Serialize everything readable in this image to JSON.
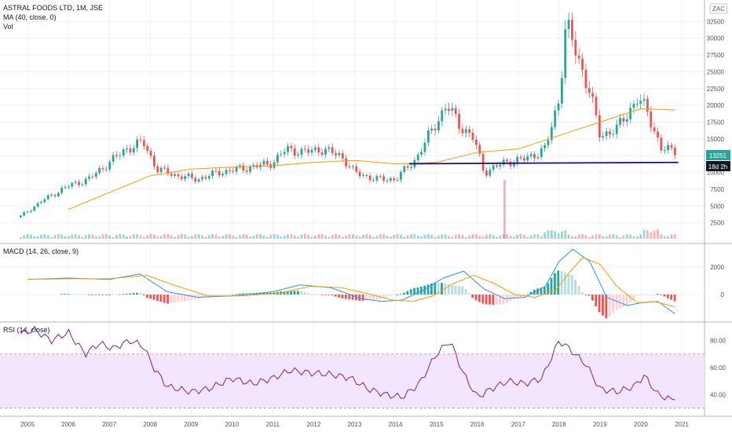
{
  "header": {
    "title": "ASTRAL FOODS LTD, 1M, JSE",
    "ma_label": "MA (40, close, 0)",
    "vol_label": "Vol",
    "currency": "ZAC"
  },
  "price_panel": {
    "last_price": "13251",
    "countdown": "18d 2h",
    "colors": {
      "up": "#26a69a",
      "down": "#ef5350",
      "ma": "#ff9800",
      "support": "#0c0ca8"
    }
  },
  "macd_panel": {
    "label": "MACD (14, 26, close, 9)"
  },
  "rsi_panel": {
    "label": "RSI (14, close)"
  },
  "chart_data": [
    {
      "type": "line",
      "title": "ASTRAL FOODS LTD, 1M, JSE",
      "x_ticks": [
        "2005",
        "2006",
        "2007",
        "2008",
        "2009",
        "2010",
        "2011",
        "2012",
        "2013",
        "2014",
        "2015",
        "2016",
        "2017",
        "2018",
        "2019",
        "2020",
        "2021"
      ],
      "y_ticks": [
        2500,
        5000,
        7500,
        10000,
        12500,
        15000,
        17500,
        20000,
        22500,
        25000,
        27500,
        30000,
        32500
      ],
      "ylim": [
        0,
        35000
      ],
      "series": [
        {
          "name": "Close",
          "x": [
            "2004-11",
            "2005-06",
            "2006-01",
            "2006-07",
            "2007-01",
            "2007-06",
            "2007-11",
            "2008-03",
            "2008-09",
            "2009-03",
            "2009-09",
            "2010-03",
            "2010-09",
            "2011-01",
            "2011-05",
            "2011-10",
            "2012-03",
            "2012-09",
            "2013-01",
            "2013-07",
            "2014-01",
            "2014-07",
            "2015-01",
            "2015-04",
            "2015-08",
            "2015-12",
            "2016-03",
            "2016-09",
            "2017-03",
            "2017-09",
            "2018-01",
            "2018-03",
            "2018-06",
            "2018-10",
            "2019-01",
            "2019-06",
            "2019-12",
            "2020-03",
            "2020-07",
            "2020-11"
          ],
          "values": [
            3500,
            6000,
            8000,
            9000,
            11500,
            13500,
            14500,
            10500,
            9500,
            9000,
            10000,
            10500,
            11000,
            11500,
            13500,
            13000,
            13500,
            12500,
            10000,
            9000,
            9000,
            12000,
            17500,
            20000,
            17000,
            15000,
            10000,
            11500,
            12000,
            13500,
            21000,
            32000,
            28000,
            22000,
            15500,
            16500,
            21000,
            19000,
            13500,
            13251
          ]
        },
        {
          "name": "MA (40, close, 0)",
          "x": [
            "2006-01",
            "2007-01",
            "2008-01",
            "2009-01",
            "2010-01",
            "2011-01",
            "2012-01",
            "2013-01",
            "2014-01",
            "2015-01",
            "2016-01",
            "2017-01",
            "2018-01",
            "2019-01",
            "2020-01",
            "2020-11"
          ],
          "values": [
            4500,
            7000,
            9500,
            10500,
            10800,
            11000,
            11500,
            11800,
            11300,
            11500,
            13000,
            13500,
            15500,
            17500,
            19500,
            19300
          ]
        },
        {
          "name": "Support",
          "x": [
            "2014-05",
            "2020-12"
          ],
          "values": [
            11300,
            11500
          ]
        }
      ]
    },
    {
      "type": "line",
      "title": "MACD (14, 26, close, 9)",
      "y_ticks": [
        0,
        2000
      ],
      "series": [
        {
          "name": "MACD",
          "x": [
            "2005-01",
            "2006-01",
            "2007-01",
            "2007-10",
            "2008-06",
            "2009-03",
            "2010-01",
            "2011-01",
            "2011-09",
            "2012-06",
            "2013-03",
            "2013-09",
            "2014-03",
            "2014-09",
            "2015-03",
            "2015-09",
            "2016-03",
            "2016-09",
            "2017-03",
            "2017-09",
            "2018-01",
            "2018-05",
            "2018-10",
            "2019-03",
            "2019-09",
            "2020-01",
            "2020-06",
            "2020-11"
          ],
          "values": [
            1100,
            1200,
            1100,
            1500,
            200,
            -200,
            -100,
            200,
            700,
            500,
            -300,
            -500,
            -400,
            300,
            1200,
            1700,
            400,
            -300,
            -200,
            600,
            2400,
            3300,
            2400,
            -200,
            -800,
            -600,
            -500,
            -1400
          ]
        },
        {
          "name": "Signal",
          "x": [
            "2005-01",
            "2006-01",
            "2007-01",
            "2007-12",
            "2008-09",
            "2009-06",
            "2010-04",
            "2011-03",
            "2011-12",
            "2012-09",
            "2013-06",
            "2013-12",
            "2014-06",
            "2014-12",
            "2015-06",
            "2015-12",
            "2016-06",
            "2016-12",
            "2017-06",
            "2017-12",
            "2018-04",
            "2018-08",
            "2019-01",
            "2019-06",
            "2019-12",
            "2020-05",
            "2020-11"
          ],
          "values": [
            1100,
            1150,
            1150,
            1400,
            600,
            -100,
            -100,
            100,
            600,
            500,
            0,
            -400,
            -500,
            -100,
            800,
            1400,
            800,
            0,
            -200,
            300,
            1600,
            2700,
            2200,
            600,
            -600,
            -500,
            -900
          ]
        }
      ]
    },
    {
      "type": "line",
      "title": "RSI (14, close)",
      "y_ticks": [
        40,
        60,
        80
      ],
      "ylim": [
        25,
        92
      ],
      "series": [
        {
          "name": "RSI",
          "x": [
            "2004-11",
            "2005-03",
            "2005-08",
            "2006-01",
            "2006-06",
            "2006-10",
            "2007-02",
            "2007-07",
            "2007-11",
            "2008-02",
            "2008-06",
            "2009-01",
            "2009-06",
            "2010-01",
            "2010-07",
            "2011-01",
            "2011-06",
            "2011-12",
            "2012-06",
            "2012-12",
            "2013-05",
            "2013-10",
            "2014-03",
            "2014-08",
            "2015-01",
            "2015-05",
            "2015-09",
            "2016-01",
            "2016-05",
            "2016-10",
            "2017-03",
            "2017-08",
            "2018-01",
            "2018-04",
            "2018-09",
            "2019-01",
            "2019-06",
            "2019-11",
            "2020-02",
            "2020-06",
            "2020-10",
            "2020-12"
          ],
          "values": [
            85,
            88,
            80,
            86,
            70,
            78,
            74,
            80,
            76,
            60,
            46,
            42,
            44,
            52,
            48,
            52,
            58,
            56,
            55,
            52,
            44,
            40,
            38,
            48,
            70,
            80,
            55,
            38,
            44,
            50,
            48,
            52,
            80,
            74,
            62,
            44,
            42,
            46,
            54,
            40,
            36,
            41
          ]
        }
      ]
    }
  ]
}
